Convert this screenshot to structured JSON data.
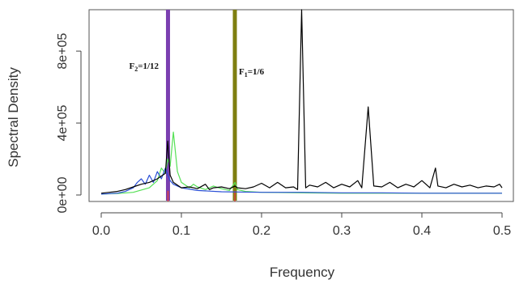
{
  "chart_data": {
    "type": "line",
    "title": "",
    "xlabel": "Frequency",
    "ylabel": "Spectral Density",
    "xlim": [
      0,
      0.5
    ],
    "ylim": [
      0,
      1030000
    ],
    "x_ticks": [
      {
        "value": 0.0,
        "label": "0.0"
      },
      {
        "value": 0.1,
        "label": "0.1"
      },
      {
        "value": 0.2,
        "label": "0.2"
      },
      {
        "value": 0.3,
        "label": "0.3"
      },
      {
        "value": 0.4,
        "label": "0.4"
      },
      {
        "value": 0.5,
        "label": "0.5"
      }
    ],
    "y_ticks": [
      {
        "value": 0,
        "label": "0e+00"
      },
      {
        "value": 400000,
        "label": "4e+05"
      },
      {
        "value": 800000,
        "label": "8e+05"
      }
    ],
    "grid": false,
    "vertical_lines": [
      {
        "x": 0.0833,
        "color": "#7a3fb0",
        "label_main": "F",
        "label_sub": "2",
        "label_rest": "=1/12"
      },
      {
        "x": 0.1667,
        "color": "#7f7f10",
        "label_main": "F",
        "label_sub": "1",
        "label_rest": "=1/6"
      }
    ],
    "series": [
      {
        "color": "#000000",
        "x": [
          0.0,
          0.01,
          0.02,
          0.03,
          0.04,
          0.05,
          0.06,
          0.07,
          0.08,
          0.083,
          0.086,
          0.09,
          0.1,
          0.11,
          0.12,
          0.13,
          0.135,
          0.14,
          0.15,
          0.16,
          0.167,
          0.17,
          0.18,
          0.19,
          0.2,
          0.21,
          0.22,
          0.23,
          0.24,
          0.245,
          0.25,
          0.255,
          0.26,
          0.27,
          0.28,
          0.29,
          0.3,
          0.31,
          0.32,
          0.325,
          0.333,
          0.34,
          0.35,
          0.36,
          0.37,
          0.38,
          0.39,
          0.4,
          0.41,
          0.417,
          0.42,
          0.43,
          0.44,
          0.45,
          0.46,
          0.47,
          0.48,
          0.49,
          0.497,
          0.5
        ],
        "y": [
          10000,
          15000,
          20000,
          30000,
          45000,
          60000,
          70000,
          90000,
          120000,
          300000,
          110000,
          70000,
          40000,
          45000,
          35000,
          60000,
          30000,
          40000,
          45000,
          35000,
          50000,
          40000,
          35000,
          45000,
          65000,
          40000,
          70000,
          40000,
          45000,
          30000,
          1030000,
          40000,
          55000,
          45000,
          70000,
          40000,
          60000,
          45000,
          80000,
          40000,
          490000,
          50000,
          45000,
          70000,
          40000,
          60000,
          45000,
          80000,
          40000,
          150000,
          50000,
          40000,
          60000,
          45000,
          55000,
          40000,
          50000,
          45000,
          60000,
          40000
        ]
      },
      {
        "color": "#2a4fd6",
        "x": [
          0.0,
          0.02,
          0.03,
          0.04,
          0.045,
          0.05,
          0.055,
          0.06,
          0.065,
          0.07,
          0.075,
          0.08,
          0.083,
          0.086,
          0.09,
          0.1,
          0.12,
          0.15,
          0.2,
          0.25,
          0.3,
          0.35,
          0.4,
          0.45,
          0.5
        ],
        "y": [
          5000,
          10000,
          20000,
          40000,
          70000,
          90000,
          60000,
          110000,
          70000,
          130000,
          90000,
          150000,
          110000,
          80000,
          60000,
          40000,
          25000,
          18000,
          15000,
          15000,
          12000,
          12000,
          10000,
          10000,
          10000
        ]
      },
      {
        "color": "#55e055",
        "x": [
          0.0,
          0.02,
          0.04,
          0.06,
          0.07,
          0.075,
          0.08,
          0.083,
          0.086,
          0.09,
          0.095,
          0.1,
          0.11,
          0.115,
          0.12,
          0.13,
          0.14,
          0.15,
          0.16,
          0.167,
          0.17,
          0.18,
          0.2,
          0.25,
          0.3,
          0.35,
          0.4,
          0.45,
          0.5
        ],
        "y": [
          5000,
          8000,
          15000,
          40000,
          80000,
          150000,
          120000,
          200000,
          160000,
          350000,
          130000,
          70000,
          40000,
          60000,
          45000,
          30000,
          50000,
          35000,
          25000,
          70000,
          30000,
          20000,
          15000,
          12000,
          10000,
          10000,
          10000,
          10000,
          10000
        ]
      }
    ]
  }
}
